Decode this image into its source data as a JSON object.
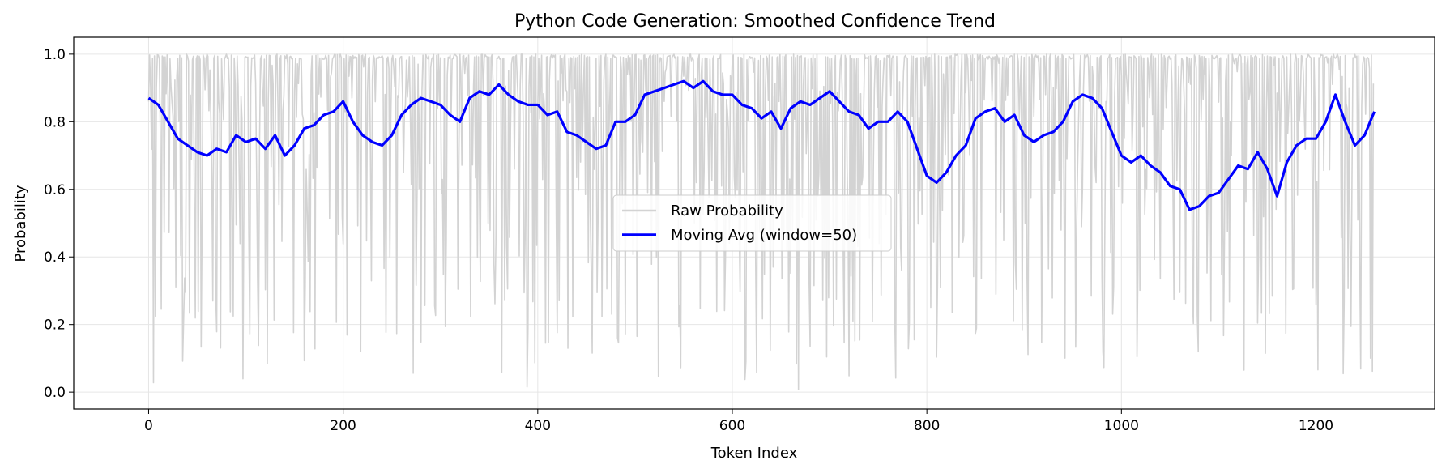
{
  "chart_data": {
    "type": "line",
    "title": "Python Code Generation: Smoothed Confidence Trend",
    "xlabel": "Token Index",
    "ylabel": "Probability",
    "xlim": [
      -77,
      1322
    ],
    "ylim": [
      -0.05,
      1.05
    ],
    "xticks": [
      0,
      200,
      400,
      600,
      800,
      1000,
      1200
    ],
    "yticks": [
      0.0,
      0.2,
      0.4,
      0.6,
      0.8,
      1.0
    ],
    "xtick_labels": [
      "0",
      "200",
      "400",
      "600",
      "800",
      "1000",
      "1200"
    ],
    "ytick_labels": [
      "0.0",
      "0.2",
      "0.4",
      "0.6",
      "0.8",
      "1.0"
    ],
    "grid": true,
    "legend_position": "center",
    "n_tokens": 1260,
    "series": [
      {
        "name": "Raw Probability",
        "color": "#d3d3d3",
        "style": "thin-line",
        "description_of_values": "per-token probabilities between 0.0 and 1.0, mostly near 1.0 with frequent drops",
        "seed": 7
      },
      {
        "name": "Moving Avg (window=50)",
        "color": "#0000ff",
        "style": "thick-line",
        "x": [
          0,
          10,
          20,
          30,
          40,
          50,
          60,
          70,
          80,
          90,
          100,
          110,
          120,
          130,
          140,
          150,
          160,
          170,
          180,
          190,
          200,
          210,
          220,
          230,
          240,
          250,
          260,
          270,
          280,
          290,
          300,
          310,
          320,
          330,
          340,
          350,
          360,
          370,
          380,
          390,
          400,
          410,
          420,
          430,
          440,
          450,
          460,
          470,
          480,
          490,
          500,
          510,
          520,
          530,
          540,
          550,
          560,
          570,
          580,
          590,
          600,
          610,
          620,
          630,
          640,
          650,
          660,
          670,
          680,
          690,
          700,
          710,
          720,
          730,
          740,
          750,
          760,
          770,
          780,
          790,
          800,
          810,
          820,
          830,
          840,
          850,
          860,
          870,
          880,
          890,
          900,
          910,
          920,
          930,
          940,
          950,
          960,
          970,
          980,
          990,
          1000,
          1010,
          1020,
          1030,
          1040,
          1050,
          1060,
          1070,
          1080,
          1090,
          1100,
          1110,
          1120,
          1130,
          1140,
          1150,
          1160,
          1170,
          1180,
          1190,
          1200,
          1210,
          1220,
          1230,
          1240,
          1250,
          1260
        ],
        "values": [
          0.87,
          0.85,
          0.8,
          0.75,
          0.73,
          0.71,
          0.7,
          0.72,
          0.71,
          0.76,
          0.74,
          0.75,
          0.72,
          0.76,
          0.7,
          0.73,
          0.78,
          0.79,
          0.82,
          0.83,
          0.86,
          0.8,
          0.76,
          0.74,
          0.73,
          0.76,
          0.82,
          0.85,
          0.87,
          0.86,
          0.85,
          0.82,
          0.8,
          0.87,
          0.89,
          0.88,
          0.91,
          0.88,
          0.86,
          0.85,
          0.85,
          0.82,
          0.83,
          0.77,
          0.76,
          0.74,
          0.72,
          0.73,
          0.8,
          0.8,
          0.82,
          0.88,
          0.89,
          0.9,
          0.91,
          0.92,
          0.9,
          0.92,
          0.89,
          0.88,
          0.88,
          0.85,
          0.84,
          0.81,
          0.83,
          0.78,
          0.84,
          0.86,
          0.85,
          0.87,
          0.89,
          0.86,
          0.83,
          0.82,
          0.78,
          0.8,
          0.8,
          0.83,
          0.8,
          0.72,
          0.64,
          0.62,
          0.65,
          0.7,
          0.73,
          0.81,
          0.83,
          0.84,
          0.8,
          0.82,
          0.76,
          0.74,
          0.76,
          0.77,
          0.8,
          0.86,
          0.88,
          0.87,
          0.84,
          0.77,
          0.7,
          0.68,
          0.7,
          0.67,
          0.65,
          0.61,
          0.6,
          0.54,
          0.55,
          0.58,
          0.59,
          0.63,
          0.67,
          0.66,
          0.71,
          0.66,
          0.58,
          0.68,
          0.73,
          0.75,
          0.75,
          0.8,
          0.88,
          0.8,
          0.73,
          0.76,
          0.83
        ]
      }
    ]
  }
}
